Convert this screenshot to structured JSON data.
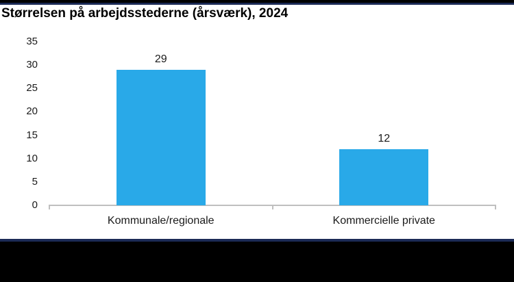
{
  "chart_data": {
    "type": "bar",
    "title": "Størrelsen på arbejdsstederne (årsværk), 2024",
    "categories": [
      "Kommunale/regionale",
      "Kommercielle private"
    ],
    "values": [
      29,
      12
    ],
    "data_labels": [
      "29",
      "12"
    ],
    "xlabel": "",
    "ylabel": "",
    "ylim": [
      0,
      35
    ],
    "yticks": [
      "0",
      "5",
      "10",
      "15",
      "20",
      "25",
      "30",
      "35"
    ],
    "grid": false,
    "legend": "none"
  },
  "colors": {
    "bar": "#29A9E8",
    "axis_line": "#BFBFBF",
    "accent_navy": "#1B2A55",
    "border_black": "#000000",
    "title_text": "#000000",
    "label_text": "#1a1a1a"
  }
}
